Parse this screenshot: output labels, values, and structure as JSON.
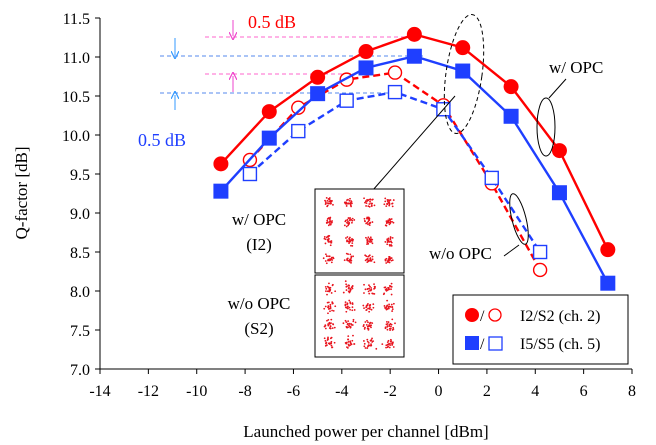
{
  "chart_data": {
    "type": "line",
    "xlabel": "Launched power per channel [dBm]",
    "ylabel": "Q-factor [dB]",
    "xlim": [
      -14,
      8
    ],
    "ylim": [
      7.0,
      11.5
    ],
    "xticks": [
      "-14",
      "-12",
      "-10",
      "-8",
      "-6",
      "-4",
      "-2",
      "0",
      "2",
      "4",
      "6",
      "8"
    ],
    "yticks": [
      "7.0",
      "7.5",
      "8.0",
      "8.5",
      "9.0",
      "9.5",
      "10.0",
      "10.5",
      "11.0",
      "11.5"
    ],
    "grid": false,
    "legend_position": "bottom-right",
    "legend": [
      {
        "label": "I2/S2 (ch. 2)",
        "color": "#ff0000"
      },
      {
        "label": "I5/S5 (ch. 5)",
        "color": "#1f3fff"
      }
    ],
    "series": [
      {
        "name": "I2 w/ OPC",
        "legend_group": "I2/S2 (ch. 2)",
        "color": "#ff0000",
        "marker": "filled-circle",
        "line": "solid",
        "x": [
          -9,
          -7,
          -5,
          -3,
          -1,
          1,
          3,
          5,
          7
        ],
        "y": [
          9.63,
          10.3,
          10.74,
          11.07,
          11.29,
          11.12,
          10.62,
          9.8,
          8.53
        ]
      },
      {
        "name": "S2 w/o OPC",
        "legend_group": "I2/S2 (ch. 2)",
        "color": "#ff0000",
        "marker": "open-circle",
        "line": "dashed",
        "x": [
          -7.8,
          -5.8,
          -3.8,
          -1.8,
          0.2,
          2.2,
          4.2
        ],
        "y": [
          9.68,
          10.35,
          10.71,
          10.8,
          10.38,
          9.38,
          8.27
        ]
      },
      {
        "name": "I5 w/ OPC",
        "legend_group": "I5/S5 (ch. 5)",
        "color": "#1f3fff",
        "marker": "filled-square",
        "line": "solid",
        "x": [
          -9,
          -7,
          -5,
          -3,
          -1,
          1,
          3,
          5,
          7
        ],
        "y": [
          9.28,
          9.96,
          10.53,
          10.86,
          11.01,
          10.82,
          10.24,
          9.26,
          8.1
        ]
      },
      {
        "name": "S5 w/o OPC",
        "legend_group": "I5/S5 (ch. 5)",
        "color": "#1f3fff",
        "marker": "open-square",
        "line": "dashed",
        "x": [
          -7.8,
          -5.8,
          -3.8,
          -1.8,
          0.2,
          2.2,
          4.2
        ],
        "y": [
          9.5,
          10.05,
          10.44,
          10.55,
          10.33,
          9.45,
          8.5
        ]
      }
    ],
    "annotations": {
      "red_db": "0.5 dB",
      "blue_db": "0.5 dB",
      "with_opc": "w/ OPC",
      "without_opc": "w/o OPC",
      "inset_top": [
        "w/ OPC",
        "(I2)"
      ],
      "inset_bottom": [
        "w/o OPC",
        "(S2)"
      ]
    }
  }
}
